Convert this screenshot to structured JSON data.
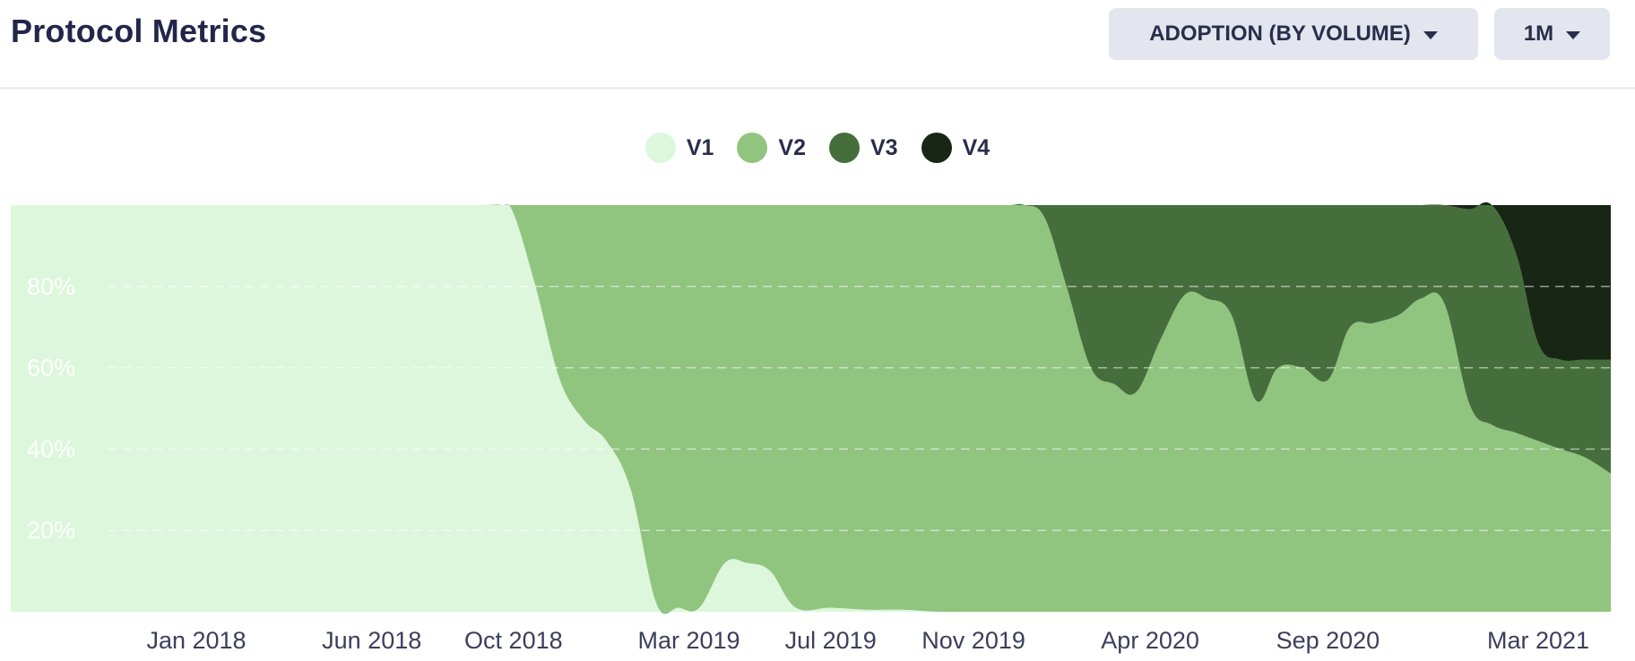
{
  "header": {
    "title": "Protocol Metrics",
    "metric_dropdown": "ADOPTION (BY VOLUME)",
    "period_dropdown": "1M"
  },
  "chart_data": {
    "type": "area",
    "stacked": true,
    "normalized_percent": true,
    "title": "",
    "xlabel": "",
    "ylabel": "",
    "ylim": [
      0,
      100
    ],
    "grid": true,
    "legend_position": "top-center",
    "yticks": [
      "20%",
      "40%",
      "60%",
      "80%"
    ],
    "ytick_values": [
      20,
      40,
      60,
      80
    ],
    "xticks": [
      "Jan 2018",
      "Jun 2018",
      "Oct 2018",
      "Mar 2019",
      "Jul 2019",
      "Nov 2019",
      "Apr 2020",
      "Sep 2020",
      "Mar 2021"
    ],
    "xtick_dates": [
      "2018-01-01",
      "2018-06-01",
      "2018-10-01",
      "2019-03-01",
      "2019-07-01",
      "2019-11-01",
      "2020-04-01",
      "2020-09-01",
      "2021-03-01"
    ],
    "x": [
      "2017-02-15",
      "2017-06-01",
      "2017-10-01",
      "2018-02-01",
      "2018-06-01",
      "2018-09-01",
      "2018-09-20",
      "2018-10-01",
      "2018-10-20",
      "2018-11-10",
      "2018-12-01",
      "2018-12-20",
      "2019-01-10",
      "2019-02-01",
      "2019-02-20",
      "2019-03-10",
      "2019-04-01",
      "2019-04-20",
      "2019-05-10",
      "2019-06-01",
      "2019-07-01",
      "2019-08-01",
      "2019-09-01",
      "2019-10-01",
      "2019-11-01",
      "2019-12-01",
      "2019-12-15",
      "2020-01-01",
      "2020-01-20",
      "2020-02-10",
      "2020-03-01",
      "2020-03-20",
      "2020-04-10",
      "2020-05-01",
      "2020-05-20",
      "2020-06-10",
      "2020-07-01",
      "2020-07-20",
      "2020-08-10",
      "2020-09-01",
      "2020-09-20",
      "2020-10-10",
      "2020-11-01",
      "2020-11-20",
      "2020-12-10",
      "2021-01-01",
      "2021-01-20",
      "2021-02-10",
      "2021-03-01",
      "2021-03-20",
      "2021-04-10",
      "2021-05-10"
    ],
    "series": [
      {
        "name": "V1",
        "color": "#dcf7dc",
        "values": [
          100,
          100,
          100,
          100,
          100,
          100,
          100,
          98,
          80,
          57,
          47,
          42,
          30,
          2,
          1,
          1,
          12,
          12,
          10,
          1,
          1,
          0.5,
          0.5,
          0,
          0,
          0,
          0,
          0,
          0,
          0,
          0,
          0,
          0,
          0,
          0,
          0,
          0,
          0,
          0,
          0,
          0,
          0,
          0,
          0,
          0,
          0,
          0,
          0,
          0,
          0,
          0,
          0
        ]
      },
      {
        "name": "V2",
        "color": "#90c47f",
        "values": [
          0,
          0,
          0,
          0,
          0,
          0,
          0,
          2,
          20,
          43,
          53,
          58,
          70,
          98,
          99,
          99,
          88,
          88,
          90,
          99,
          99,
          99.5,
          99.5,
          100,
          100,
          100,
          100,
          97,
          80,
          60,
          56,
          54,
          67,
          78,
          77,
          73,
          52,
          60,
          60,
          57,
          70,
          71,
          73,
          77,
          76,
          51,
          46,
          44,
          42,
          40,
          38,
          34
        ]
      },
      {
        "name": "V3",
        "color": "#466e3c",
        "values": [
          0,
          0,
          0,
          0,
          0,
          0,
          0,
          0,
          0,
          0,
          0,
          0,
          0,
          0,
          0,
          0,
          0,
          0,
          0,
          0,
          0,
          0,
          0,
          0,
          0,
          0,
          0,
          3,
          20,
          40,
          44,
          46,
          33,
          22,
          23,
          27,
          48,
          40,
          40,
          43,
          30,
          29,
          27,
          23,
          24,
          48,
          54,
          44,
          24,
          22,
          24,
          28
        ]
      },
      {
        "name": "V4",
        "color": "#172615",
        "values": [
          0,
          0,
          0,
          0,
          0,
          0,
          0,
          0,
          0,
          0,
          0,
          0,
          0,
          0,
          0,
          0,
          0,
          0,
          0,
          0,
          0,
          0,
          0,
          0,
          0,
          0,
          0,
          0,
          0,
          0,
          0,
          0,
          0,
          0,
          0,
          0,
          0,
          0,
          0,
          0,
          0,
          0,
          0,
          0,
          0,
          1,
          0,
          12,
          34,
          38,
          38,
          38
        ]
      }
    ]
  }
}
